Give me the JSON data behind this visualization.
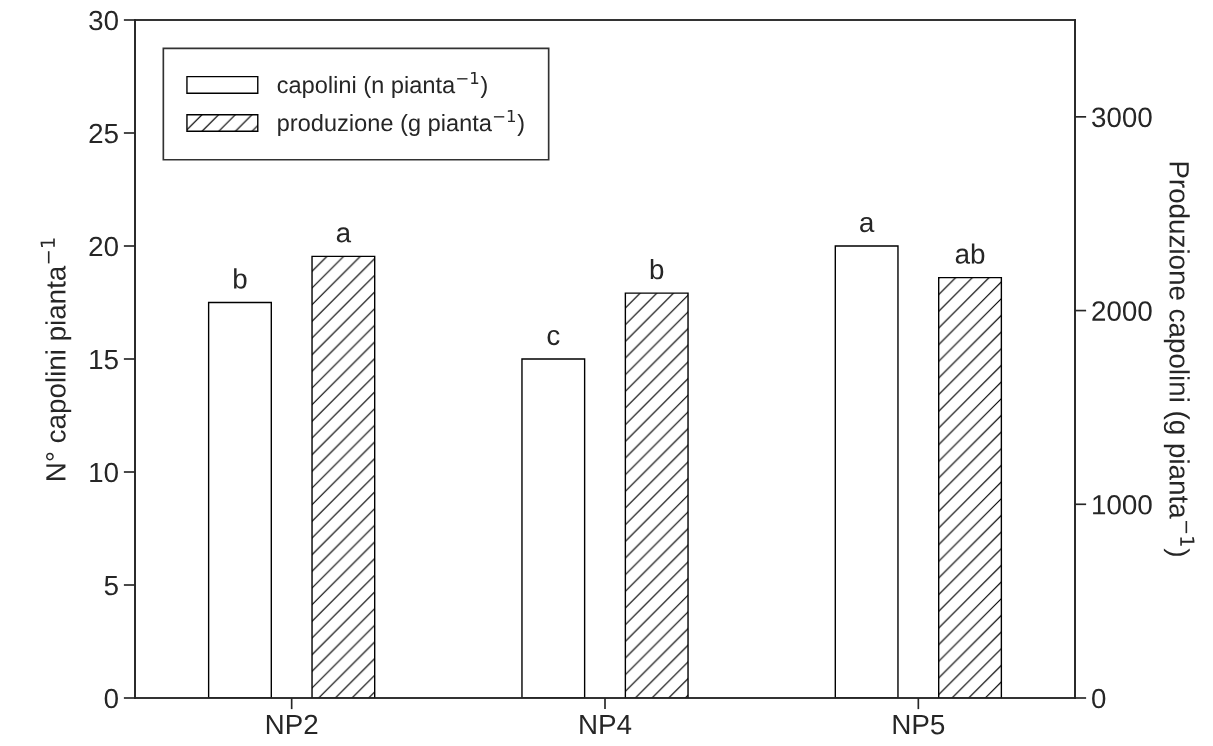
{
  "chart_data": {
    "type": "bar",
    "categories": [
      "NP2",
      "NP4",
      "NP5"
    ],
    "ylabel": "N° capolini pianta$^{−1}$",
    "y2label": "Produzione capolini (g pianta$^{−1}$)",
    "ylim": [
      0,
      30
    ],
    "yticks": [
      0,
      5,
      10,
      15,
      20,
      25,
      30
    ],
    "y2lim": [
      0,
      3500
    ],
    "y2ticks": [
      0,
      1000,
      2000,
      3000
    ],
    "series": [
      {
        "name": "capolini (n pianta$^{−1}$)",
        "color": "#ffffff",
        "values": [
          17.5,
          15,
          20
        ],
        "value_labels": [
          "b",
          "c",
          "a"
        ]
      },
      {
        "name": "produzione (g pianta$^{−1}$)",
        "color": "#000000",
        "values": [
          2280,
          2090,
          2170
        ],
        "axis": "y2",
        "value_labels": [
          "a",
          "b",
          "ab"
        ]
      }
    ],
    "legend": "top left",
    "grid": false
  }
}
